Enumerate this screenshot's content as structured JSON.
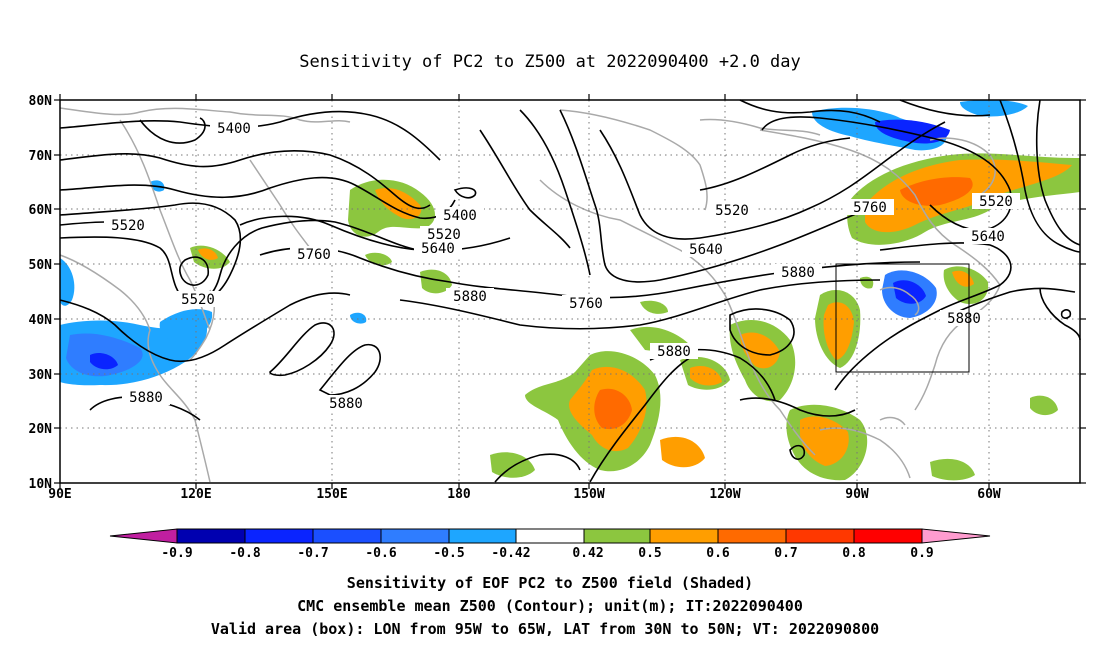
{
  "title": "Sensitivity of PC2 to Z500 at 2022090400 +2.0 day",
  "lat_ticks": [
    "80N",
    "70N",
    "60N",
    "50N",
    "40N",
    "30N",
    "20N",
    "10N"
  ],
  "lon_ticks": [
    "90E",
    "120E",
    "150E",
    "180",
    "150W",
    "120W",
    "90W",
    "60W"
  ],
  "contour_labels": {
    "c1": "5400",
    "c2": "5520",
    "c3": "5520",
    "c4": "5400",
    "c5": "5520",
    "c6": "5640",
    "c7": "5760",
    "c8": "5880",
    "c9": "5880",
    "c10": "5880",
    "c11": "5880",
    "c12": "5760",
    "c13": "5520",
    "c14": "5640",
    "c15": "5880",
    "c16": "5760",
    "c17": "5520",
    "c18": "5640",
    "c19": "5880"
  },
  "colorbar": {
    "labels": [
      "-0.9",
      "-0.8",
      "-0.7",
      "-0.6",
      "-0.5",
      "-0.42",
      "0.42",
      "0.5",
      "0.6",
      "0.7",
      "0.8",
      "0.9"
    ],
    "colors": [
      "#0000b0",
      "#0a24ff",
      "#1b4fff",
      "#2f7dff",
      "#1ea6ff",
      "#00c8ff",
      "#ffffff",
      "#8cc63f",
      "#ff9e00",
      "#ff6a00",
      "#ff3800",
      "#ff0000"
    ],
    "low_end_color": "#c01fa0",
    "high_end_color": "#ff9ccf"
  },
  "captions": {
    "line1": "Sensitivity of EOF PC2 to Z500 field (Shaded)",
    "line2": "CMC ensemble mean Z500 (Contour); unit(m); IT:2022090400",
    "line3": "Valid area (box): LON from 95W to 65W, LAT from 30N to 50N; VT: 2022090800"
  }
}
